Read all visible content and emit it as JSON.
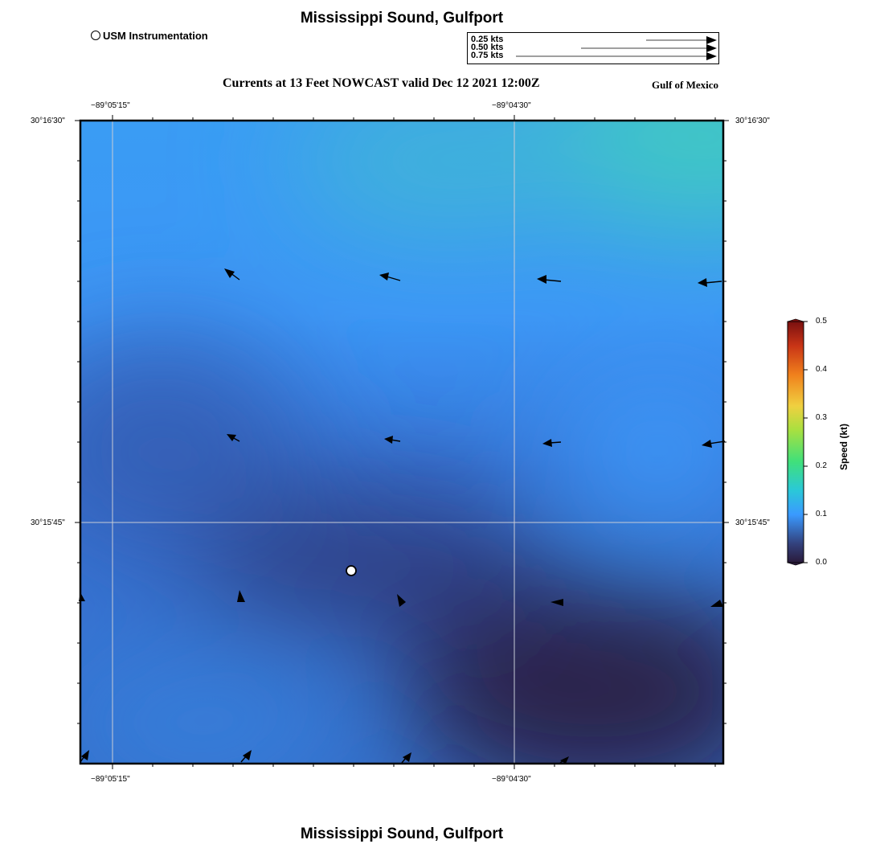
{
  "header": {
    "title": "Mississippi Sound, Gulfport"
  },
  "footer": {
    "title": "Mississippi Sound, Gulfport"
  },
  "legend": {
    "station_label": "USM Instrumentation"
  },
  "scale_legend": {
    "items": [
      "0.25 kts",
      "0.50 kts",
      "0.75 kts"
    ]
  },
  "map": {
    "subtitle": "Currents at 13 Feet NOWCAST valid Dec 12 2021 12:00Z",
    "region_label": "Gulf of Mexico",
    "lon_labels": [
      "−89°05'15\"",
      "−89°04'30\""
    ],
    "lat_labels": [
      "30°16'30\"",
      "30°15'45\""
    ]
  },
  "colorbar": {
    "axis_label": "Speed (kt)",
    "ticks": [
      "0.5",
      "0.4",
      "0.3",
      "0.2",
      "0.1",
      "0.0"
    ],
    "colors": {
      "max": "#7a1010",
      "high": "#e8601c",
      "mid": "#f0d040",
      "green": "#40e060",
      "low": "#3a9aff",
      "min": "#2a1a3a"
    }
  }
}
